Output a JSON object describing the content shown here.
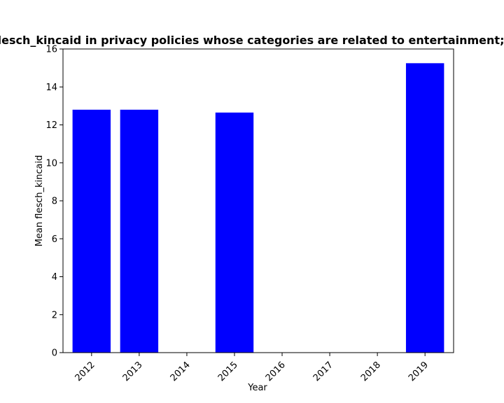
{
  "chart_data": {
    "type": "bar",
    "title": "Mean flesch_kincaid in privacy policies whose categories are related to entertainment;weapons",
    "xlabel": "Year",
    "ylabel": "Mean flesch_kincaid",
    "categories": [
      "2012",
      "2013",
      "2014",
      "2015",
      "2016",
      "2017",
      "2018",
      "2019"
    ],
    "values": [
      12.8,
      12.8,
      null,
      12.65,
      null,
      null,
      null,
      15.25
    ],
    "ylim": [
      0,
      16
    ],
    "yticks": [
      0,
      2,
      4,
      6,
      8,
      10,
      12,
      14,
      16
    ],
    "bar_color": "#0000ff",
    "grid": false,
    "xtick_rotation": 45
  }
}
